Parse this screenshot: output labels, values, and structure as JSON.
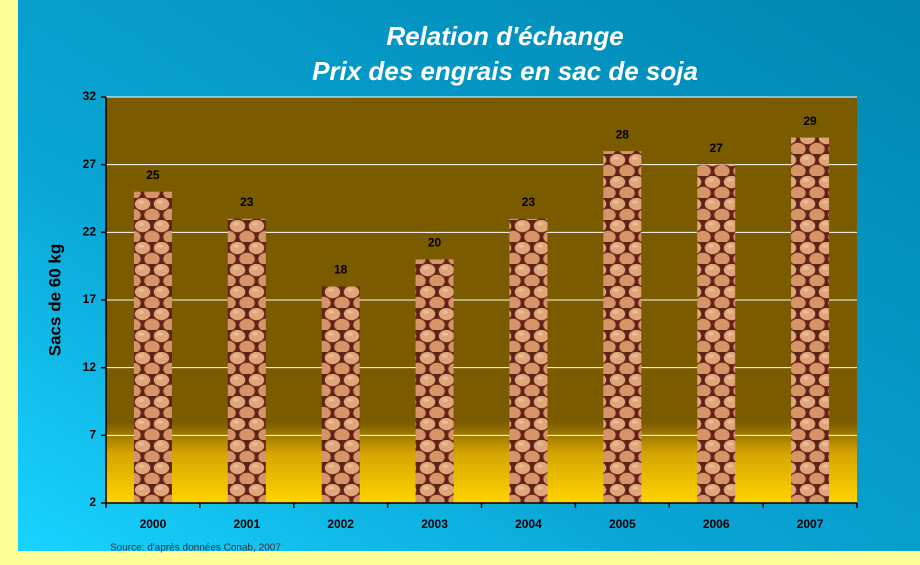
{
  "chart_data": {
    "type": "bar",
    "title": "Relation d'échange",
    "subtitle": "Prix des engrais en sac de soja",
    "y_label": "Sacs de 60 kg",
    "source": "Source: d'après données Conab, 2007",
    "categories": [
      "2000",
      "2001",
      "2002",
      "2003",
      "2004",
      "2005",
      "2006",
      "2007"
    ],
    "values": [
      25,
      23,
      18,
      20,
      23,
      28,
      27,
      29
    ],
    "ylim": [
      2,
      32
    ],
    "yticks": [
      2,
      7,
      12,
      17,
      22,
      27,
      32
    ],
    "grid": true,
    "color": "#d9a070"
  }
}
